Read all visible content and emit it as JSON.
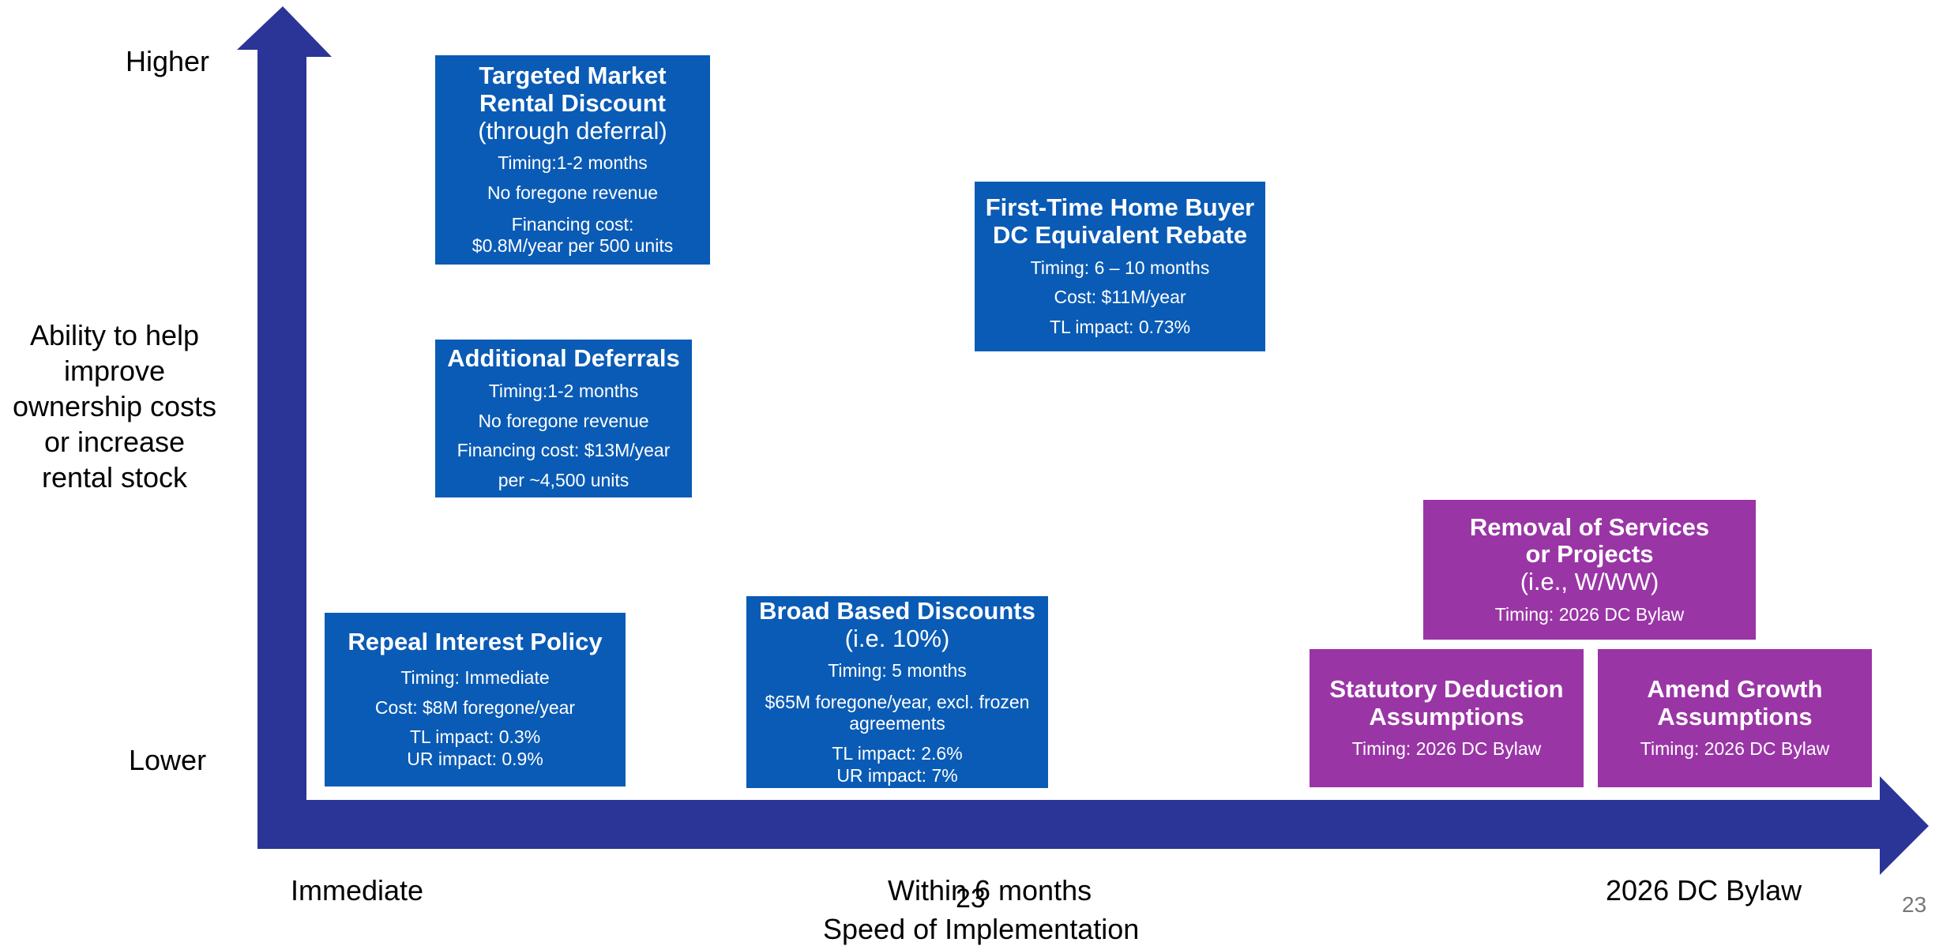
{
  "axes": {
    "y_title_lines": [
      "Ability to help",
      "improve",
      "ownership costs",
      "or increase",
      "rental stock"
    ],
    "y_high": "Higher",
    "y_low": "Lower",
    "x_title": "Speed of Implementation",
    "x_ticks": [
      "Immediate",
      "Within 6 months",
      "2026 DC Bylaw"
    ],
    "axis_color": "#2b3597"
  },
  "page_number": "23",
  "page_number_overlap": "23",
  "colors": {
    "blue_box": "#0a5bb5",
    "purple_box": "#9a35a6"
  },
  "boxes": {
    "targeted": {
      "title_lines": [
        "Targeted Market",
        "Rental Discount"
      ],
      "subtitle": "(through deferral)",
      "details": [
        "Timing:1-2 months",
        "No foregone revenue",
        "Financing cost:",
        "$0.8M/year per 500 units"
      ]
    },
    "additional": {
      "title": "Additional Deferrals",
      "details": [
        "Timing:1-2 months",
        "No foregone revenue",
        "Financing cost: $13M/year",
        "per ~4,500 units"
      ]
    },
    "first_time": {
      "title_lines": [
        "First-Time Home Buyer",
        "DC Equivalent Rebate"
      ],
      "details": [
        "Timing: 6 – 10 months",
        "Cost: $11M/year",
        "TL impact: 0.73%"
      ]
    },
    "repeal": {
      "title": "Repeal Interest Policy",
      "details": [
        "Timing: Immediate",
        "Cost: $8M foregone/year",
        "TL impact: 0.3%",
        "UR impact: 0.9%"
      ]
    },
    "broad": {
      "title": "Broad Based Discounts",
      "subtitle": "(i.e. 10%)",
      "details": [
        "Timing: 5 months",
        "$65M foregone/year, excl. frozen",
        "agreements",
        "TL impact: 2.6%",
        "UR impact: 7%"
      ]
    },
    "removal": {
      "title_lines": [
        "Removal of Services",
        "or Projects"
      ],
      "subtitle": "(i.e., W/WW)",
      "details": [
        "Timing: 2026 DC Bylaw"
      ]
    },
    "statutory": {
      "title_lines": [
        "Statutory Deduction",
        "Assumptions"
      ],
      "details": [
        "Timing: 2026 DC Bylaw"
      ]
    },
    "amend": {
      "title_lines": [
        "Amend Growth",
        "Assumptions"
      ],
      "details": [
        "Timing: 2026 DC Bylaw"
      ]
    }
  }
}
